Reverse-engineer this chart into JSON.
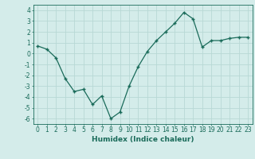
{
  "x": [
    0,
    1,
    2,
    3,
    4,
    5,
    6,
    7,
    8,
    9,
    10,
    11,
    12,
    13,
    14,
    15,
    16,
    17,
    18,
    19,
    20,
    21,
    22,
    23
  ],
  "y": [
    0.7,
    0.4,
    -0.4,
    -2.3,
    -3.5,
    -3.3,
    -4.7,
    -3.9,
    -6.0,
    -5.4,
    -3.0,
    -1.2,
    0.2,
    1.2,
    2.0,
    2.8,
    3.8,
    3.2,
    0.6,
    1.2,
    1.2,
    1.4,
    1.5,
    1.5
  ],
  "line_color": "#1a6b5a",
  "marker": "+",
  "bg_color": "#d4ecea",
  "grid_color": "#b8d8d5",
  "xlabel": "Humidex (Indice chaleur)",
  "xlim": [
    -0.5,
    23.5
  ],
  "ylim": [
    -6.5,
    4.5
  ],
  "yticks": [
    -6,
    -5,
    -4,
    -3,
    -2,
    -1,
    0,
    1,
    2,
    3,
    4
  ],
  "xticks": [
    0,
    1,
    2,
    3,
    4,
    5,
    6,
    7,
    8,
    9,
    10,
    11,
    12,
    13,
    14,
    15,
    16,
    17,
    18,
    19,
    20,
    21,
    22,
    23
  ],
  "tick_color": "#1a6b5a",
  "label_color": "#1a6b5a",
  "label_fontsize": 6.5,
  "tick_fontsize": 5.5
}
